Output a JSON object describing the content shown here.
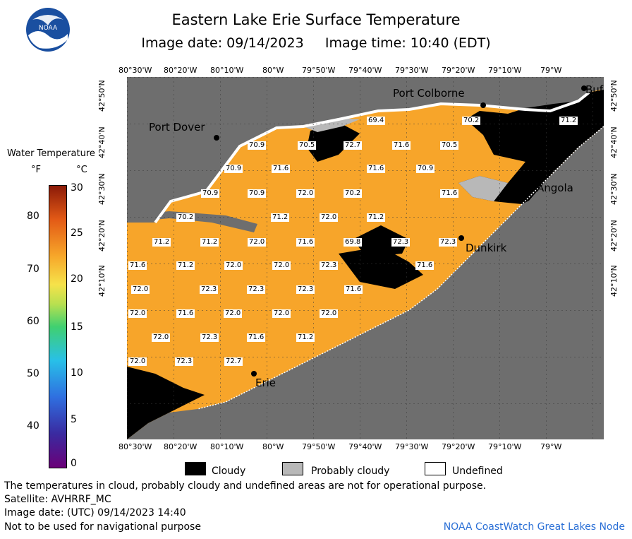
{
  "title": "Eastern Lake Erie Surface Temperature",
  "subtitle": "Image date: 09/14/2023     Image time: 10:40 (EDT)",
  "colors": {
    "water": "#F7A52A",
    "land": "#6E6E6E",
    "cloud": "#000000",
    "probably_cloudy": "#B8B8B8",
    "undefined": "#FFFFFF",
    "credit": "#2A6FD6"
  },
  "lon_ticks": [
    "80°30'W",
    "80°20'W",
    "80°10'W",
    "80°W",
    "79°50'W",
    "79°40'W",
    "79°30'W",
    "79°20'W",
    "79°10'W",
    "79°W"
  ],
  "lat_ticks": [
    "42°50'N",
    "42°40'N",
    "42°30'N",
    "42°20'N",
    "42°10'N"
  ],
  "places": {
    "port_colborne": "Port Colborne",
    "port_dover": "Port Dover",
    "angola": "Angola",
    "dunkirk": "Dunkirk",
    "erie": "Erie",
    "buffalo": "Buf"
  },
  "temperatures": [
    "69.4",
    "70.2",
    "71.2",
    "70.9",
    "70.5",
    "72.7",
    "71.6",
    "70.5",
    "70.9",
    "71.6",
    "71.6",
    "70.9",
    "70.9",
    "70.9",
    "72.0",
    "70.2",
    "71.6",
    "70.2",
    "71.2",
    "72.0",
    "71.2",
    "71.2",
    "71.2",
    "72.0",
    "71.6",
    "69.8",
    "72.3",
    "72.3",
    "71.6",
    "71.2",
    "72.0",
    "72.0",
    "72.3",
    "71.6",
    "72.0",
    "72.3",
    "72.3",
    "72.3",
    "71.6",
    "72.0",
    "71.6",
    "72.0",
    "72.0",
    "72.0",
    "72.0",
    "72.3",
    "71.6",
    "71.2",
    "72.0",
    "72.3",
    "72.7"
  ],
  "legend": {
    "title": "Water Temperature",
    "unit_f": "°F",
    "unit_c": "°C",
    "f_ticks": [
      "80",
      "70",
      "60",
      "50",
      "40"
    ],
    "c_ticks": [
      "30",
      "25",
      "20",
      "15",
      "10",
      "5",
      "0"
    ],
    "min_c": 0,
    "max_c": 30
  },
  "key": {
    "cloudy": "Cloudy",
    "probably_cloudy": "Probably cloudy",
    "undefined": "Undefined"
  },
  "footer": {
    "line1": "The temperatures in cloud, probably cloudy and undefined areas are not for operational purpose.",
    "line2": "Satellite: AVHRRF_MC",
    "line3": "Image date: (UTC) 09/14/2023  14:40",
    "line4": "Not to be used for navigational purpose",
    "credit": "NOAA CoastWatch Great Lakes Node"
  },
  "logo_text": "NOAA"
}
